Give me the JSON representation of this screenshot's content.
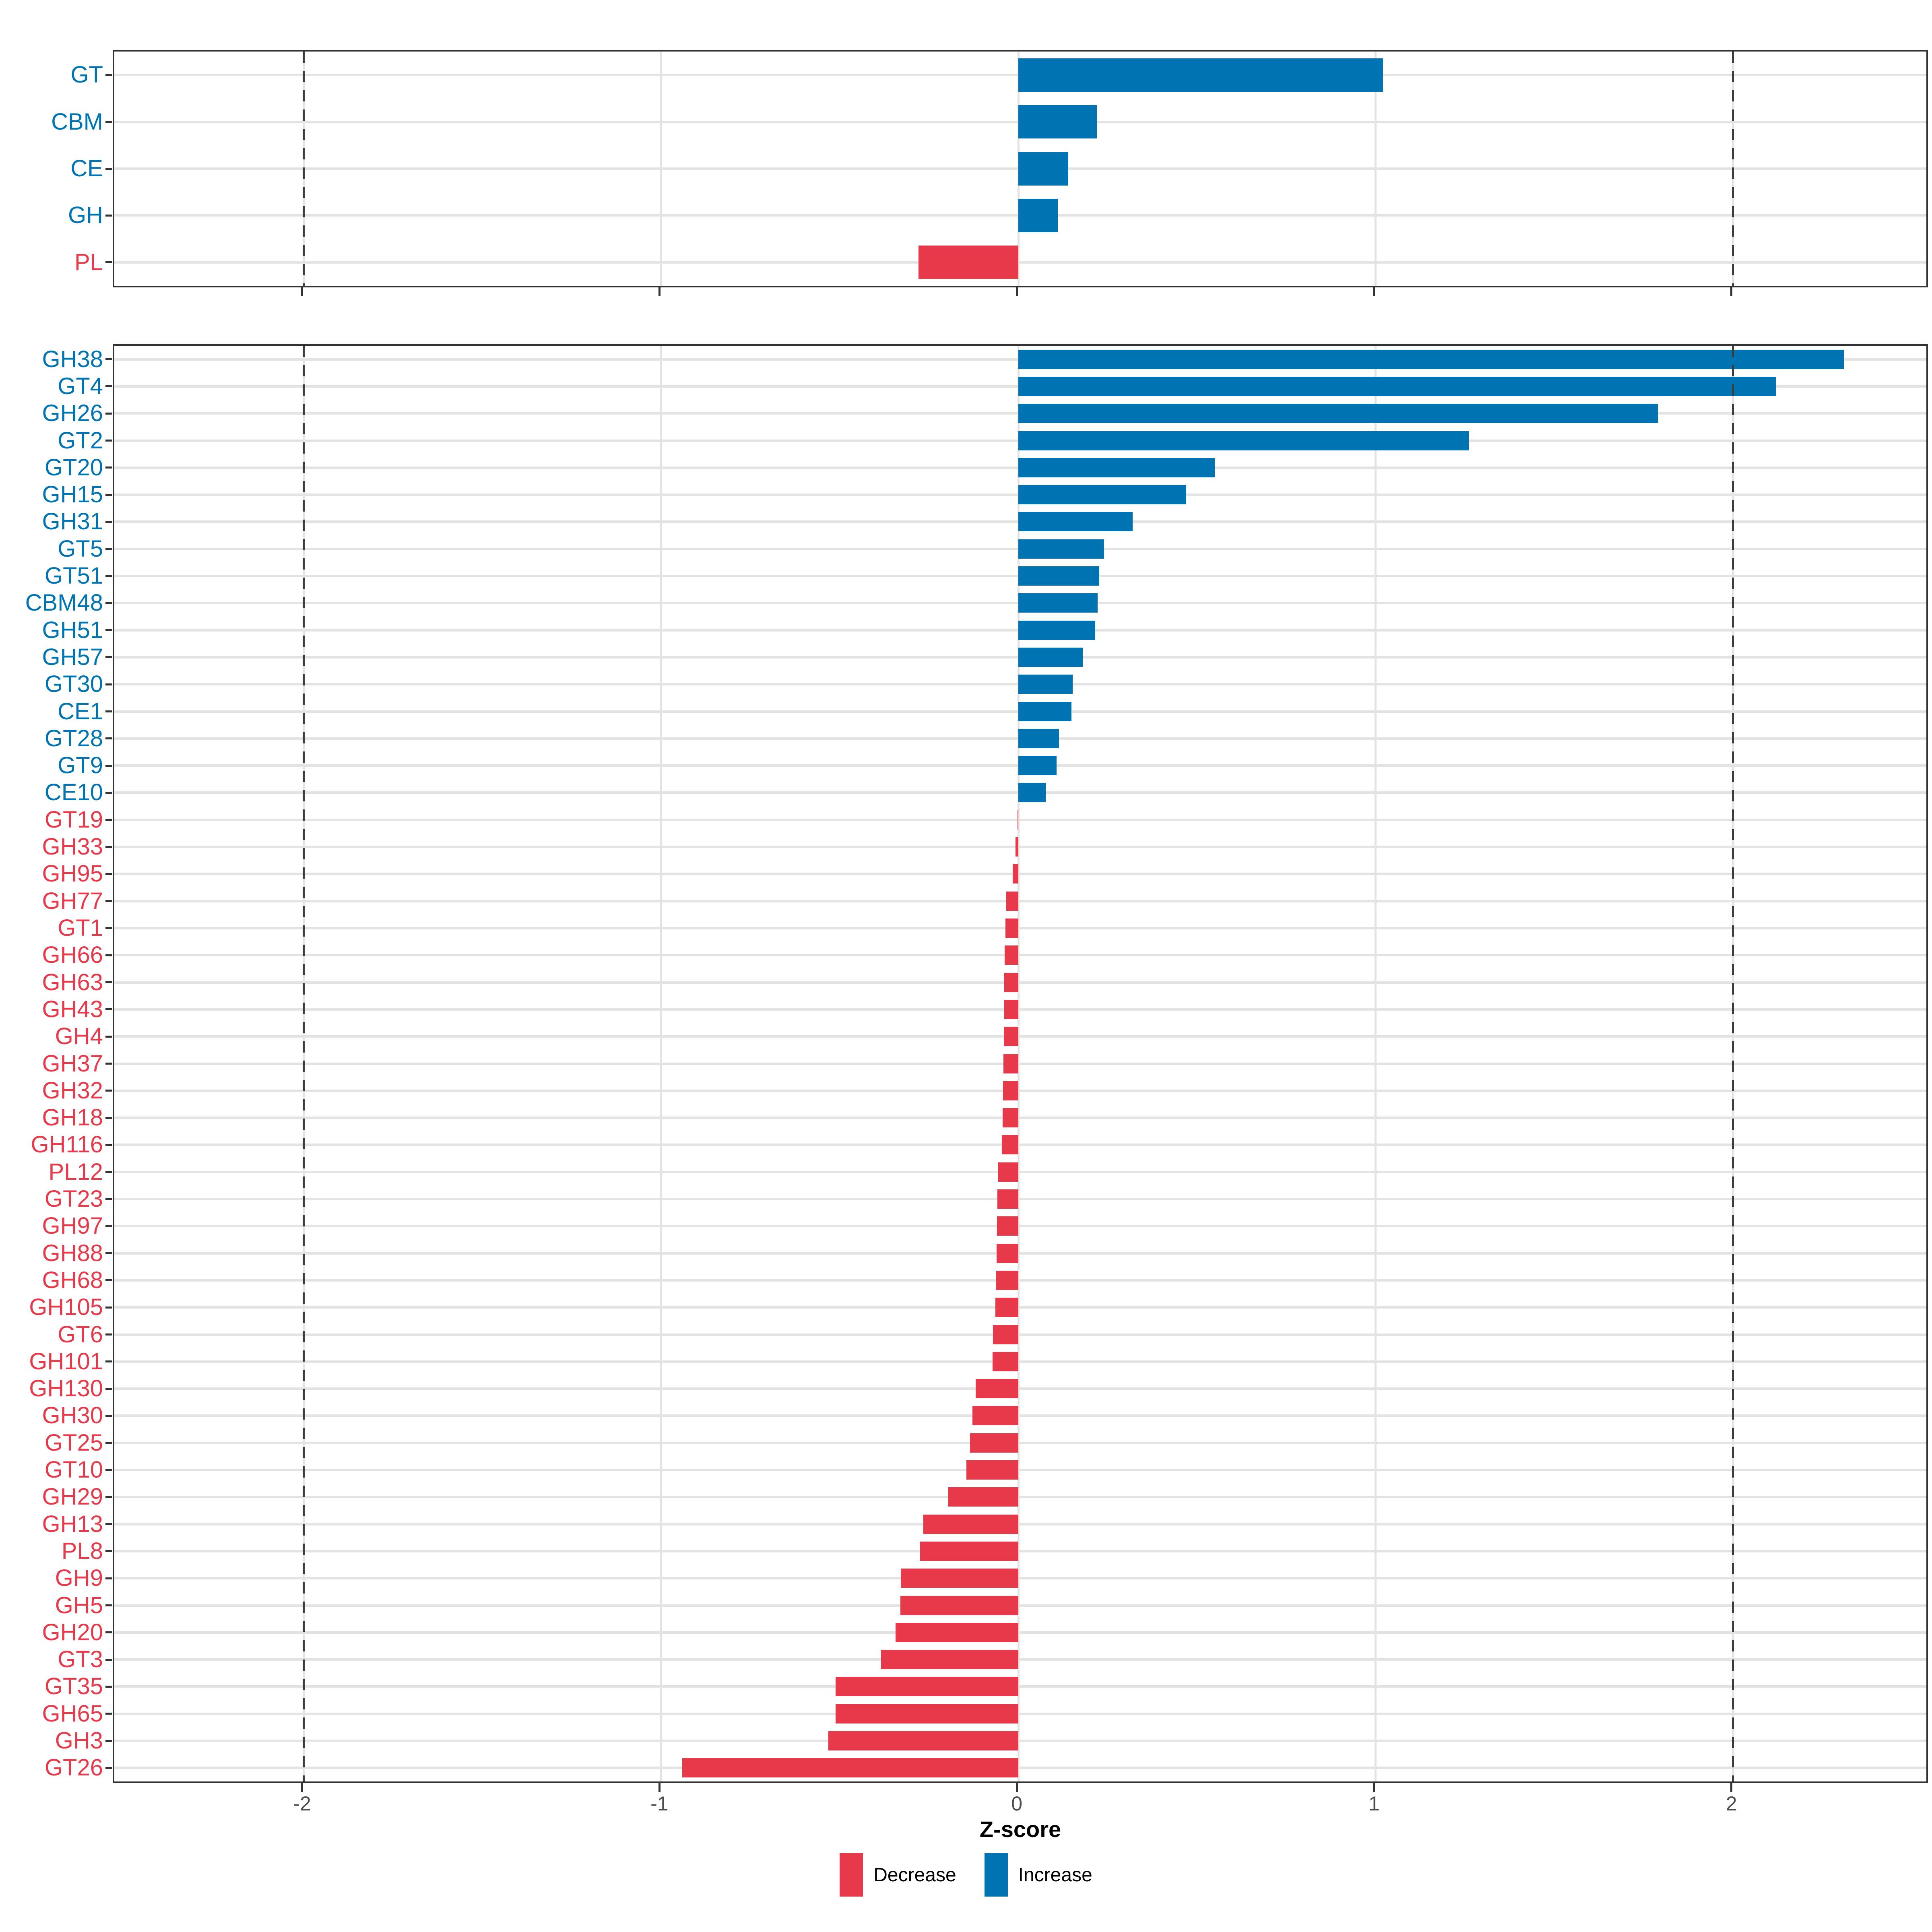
{
  "chart_data": {
    "type": "bar",
    "orientation": "horizontal",
    "title": "",
    "xlabel": "Z-score",
    "x_ticks": [
      -2,
      -1,
      0,
      1,
      2
    ],
    "x_tick_labels": [
      "-2",
      "-1",
      "0",
      "1",
      "2"
    ],
    "xlim": [
      -2.53,
      2.55
    ],
    "dashed_reference_lines_x": [
      -2,
      2
    ],
    "grid": true,
    "legend_position": "bottom",
    "colors": {
      "increase": "#0073B2",
      "decrease": "#E8394A",
      "axis_text": "#4D4D4D",
      "panel_border": "#333333",
      "gridline": "#E3E3E3",
      "dashed_line": "#3C3C3C"
    },
    "legend": {
      "entries": [
        {
          "label": "Decrease",
          "color": "#E8394A"
        },
        {
          "label": "Increase",
          "color": "#0073B2"
        }
      ]
    },
    "panels": [
      {
        "name": "cazyme-class-panel",
        "categories": [
          "GT",
          "CBM",
          "CE",
          "GH",
          "PL"
        ],
        "values": [
          1.02,
          0.22,
          0.14,
          0.11,
          -0.28
        ]
      },
      {
        "name": "cazyme-family-panel",
        "categories": [
          "GH38",
          "GT4",
          "GH26",
          "GT2",
          "GT20",
          "GH15",
          "GH31",
          "GT5",
          "GT51",
          "CBM48",
          "GH51",
          "GH57",
          "GT30",
          "CE1",
          "GT28",
          "GT9",
          "CE10",
          "GT19",
          "GH33",
          "GH95",
          "GH77",
          "GT1",
          "GH66",
          "GH63",
          "GH43",
          "GH4",
          "GH37",
          "GH32",
          "GH18",
          "GH116",
          "PL12",
          "GT23",
          "GH97",
          "GH88",
          "GH68",
          "GH105",
          "GT6",
          "GH101",
          "GH130",
          "GH30",
          "GT25",
          "GT10",
          "GH29",
          "GH13",
          "PL8",
          "GH9",
          "GH5",
          "GH20",
          "GT3",
          "GT35",
          "GH65",
          "GH3",
          "GT26"
        ],
        "values": [
          2.31,
          2.12,
          1.79,
          1.26,
          0.55,
          0.47,
          0.32,
          0.24,
          0.226,
          0.222,
          0.215,
          0.18,
          0.152,
          0.149,
          0.114,
          0.107,
          0.077,
          -0.002,
          -0.008,
          -0.016,
          -0.034,
          -0.036,
          -0.038,
          -0.039,
          -0.04,
          -0.041,
          -0.042,
          -0.043,
          -0.044,
          -0.046,
          -0.057,
          -0.059,
          -0.06,
          -0.061,
          -0.062,
          -0.064,
          -0.071,
          -0.072,
          -0.119,
          -0.128,
          -0.135,
          -0.145,
          -0.196,
          -0.266,
          -0.275,
          -0.329,
          -0.33,
          -0.344,
          -0.384,
          -0.512,
          -0.512,
          -0.532,
          -0.941
        ]
      }
    ]
  }
}
